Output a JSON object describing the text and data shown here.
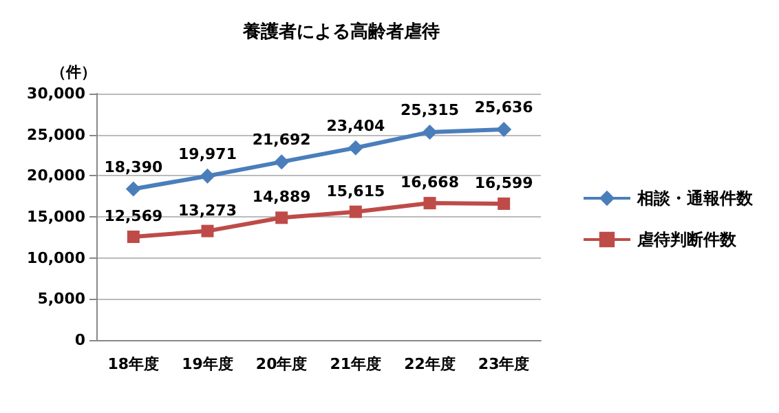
{
  "chart_data": {
    "type": "line",
    "title": "養護者による高齢者虐待",
    "ylabel": "（件）",
    "categories": [
      "18年度",
      "19年度",
      "20年度",
      "21年度",
      "22年度",
      "23年度"
    ],
    "series": [
      {
        "name": "相談・通報件数",
        "color": "#4a7ebb",
        "marker": "diamond",
        "values": [
          18390,
          19971,
          21692,
          23404,
          25315,
          25636
        ],
        "value_labels": [
          "18,390",
          "19,971",
          "21,692",
          "23,404",
          "25,315",
          "25,636"
        ]
      },
      {
        "name": "虐待判断件数",
        "color": "#be4b48",
        "marker": "square",
        "values": [
          12569,
          13273,
          14889,
          15615,
          16668,
          16599
        ],
        "value_labels": [
          "12,569",
          "13,273",
          "14,889",
          "15,615",
          "16,668",
          "16,599"
        ]
      }
    ],
    "ylim": [
      0,
      30000
    ],
    "yticks": [
      {
        "value": 0,
        "label": "0"
      },
      {
        "value": 5000,
        "label": "5,000"
      },
      {
        "value": 10000,
        "label": "10,000"
      },
      {
        "value": 15000,
        "label": "15,000"
      },
      {
        "value": 20000,
        "label": "20,000"
      },
      {
        "value": 25000,
        "label": "25,000"
      },
      {
        "value": 30000,
        "label": "30,000"
      }
    ],
    "grid": "y",
    "legend": "right",
    "line_style": "solid"
  }
}
